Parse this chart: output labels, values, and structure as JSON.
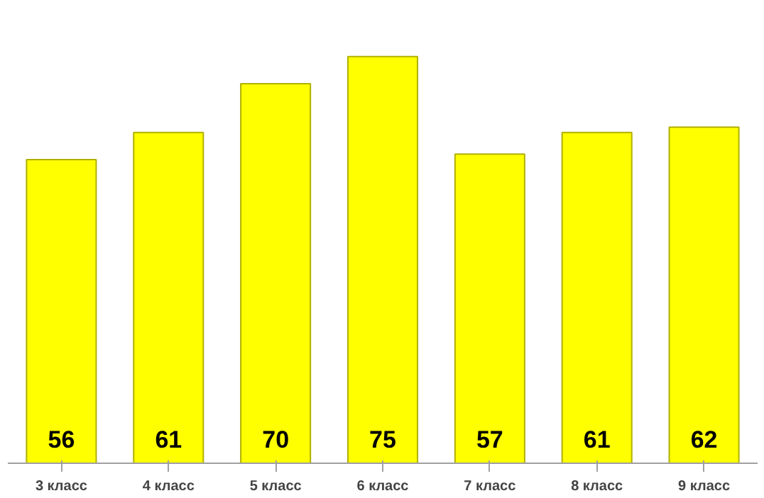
{
  "chart_data": {
    "type": "bar",
    "categories": [
      "3 класс",
      "4 класс",
      "5 класс",
      "6 класс",
      "7 класс",
      "8 класс",
      "9 класс"
    ],
    "values": [
      56,
      61,
      70,
      75,
      57,
      61,
      62
    ],
    "color": "#ffff00",
    "data_labels": true
  }
}
